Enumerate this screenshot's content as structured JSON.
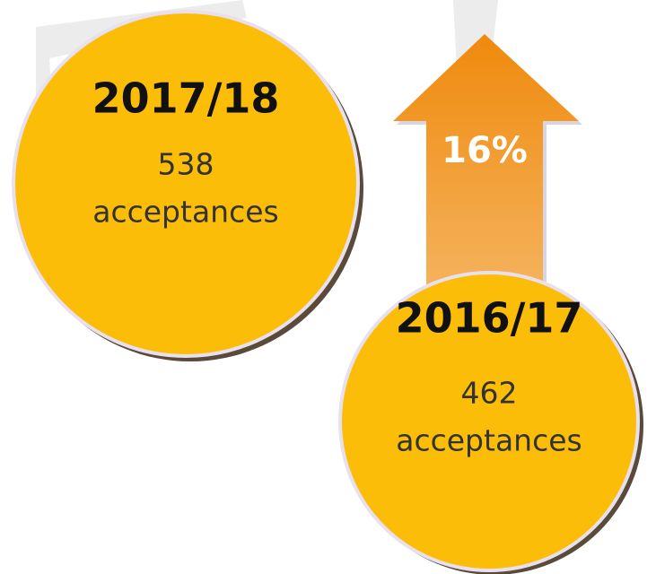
{
  "circles": [
    {
      "year": "2017/18",
      "count": "538",
      "unit": "acceptances"
    },
    {
      "year": "2016/17",
      "count": "462",
      "unit": "acceptances"
    }
  ],
  "change": {
    "label": "16%"
  }
}
